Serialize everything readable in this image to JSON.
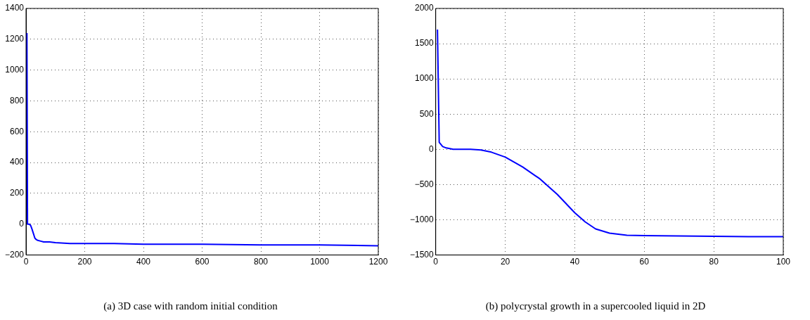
{
  "chart_data": [
    {
      "type": "line",
      "title": "(a) 3D case with random initial condition",
      "series": [
        {
          "color": "#0000ff",
          "x": [
            3,
            5,
            8,
            12,
            16,
            20,
            25,
            30,
            35,
            40,
            50,
            60,
            80,
            100,
            150,
            200,
            300,
            400,
            600,
            800,
            1000,
            1200
          ],
          "values": [
            1240,
            0,
            0,
            0,
            -10,
            -30,
            -60,
            -90,
            -100,
            -105,
            -110,
            -115,
            -115,
            -120,
            -125,
            -125,
            -125,
            -130,
            -130,
            -135,
            -135,
            -140
          ]
        }
      ],
      "xlim": [
        0,
        1200
      ],
      "xticks": [
        0,
        200,
        400,
        600,
        800,
        1000,
        1200
      ],
      "ylim": [
        -200,
        1400
      ],
      "yticks": [
        -200,
        0,
        200,
        400,
        600,
        800,
        1000,
        1200,
        1400
      ],
      "grid": true,
      "marker": "none",
      "line_style": "solid"
    },
    {
      "type": "line",
      "title": "(b) polycrystal growth in a supercooled liquid in 2D",
      "series": [
        {
          "color": "#0000ff",
          "x": [
            0.5,
            1,
            1.5,
            2,
            3,
            5,
            8,
            10,
            13,
            16,
            20,
            25,
            30,
            35,
            40,
            43,
            46,
            50,
            55,
            60,
            70,
            80,
            90,
            100
          ],
          "values": [
            1700,
            100,
            70,
            40,
            20,
            0,
            0,
            0,
            -10,
            -40,
            -110,
            -250,
            -420,
            -640,
            -900,
            -1030,
            -1130,
            -1190,
            -1220,
            -1225,
            -1230,
            -1235,
            -1240,
            -1240
          ]
        }
      ],
      "xlim": [
        0,
        100
      ],
      "xticks": [
        0,
        20,
        40,
        60,
        80,
        100
      ],
      "ylim": [
        -1500,
        2000
      ],
      "yticks": [
        -1500,
        -1000,
        -500,
        0,
        500,
        1000,
        1500,
        2000
      ],
      "grid": true,
      "marker": "none",
      "line_style": "solid"
    }
  ]
}
